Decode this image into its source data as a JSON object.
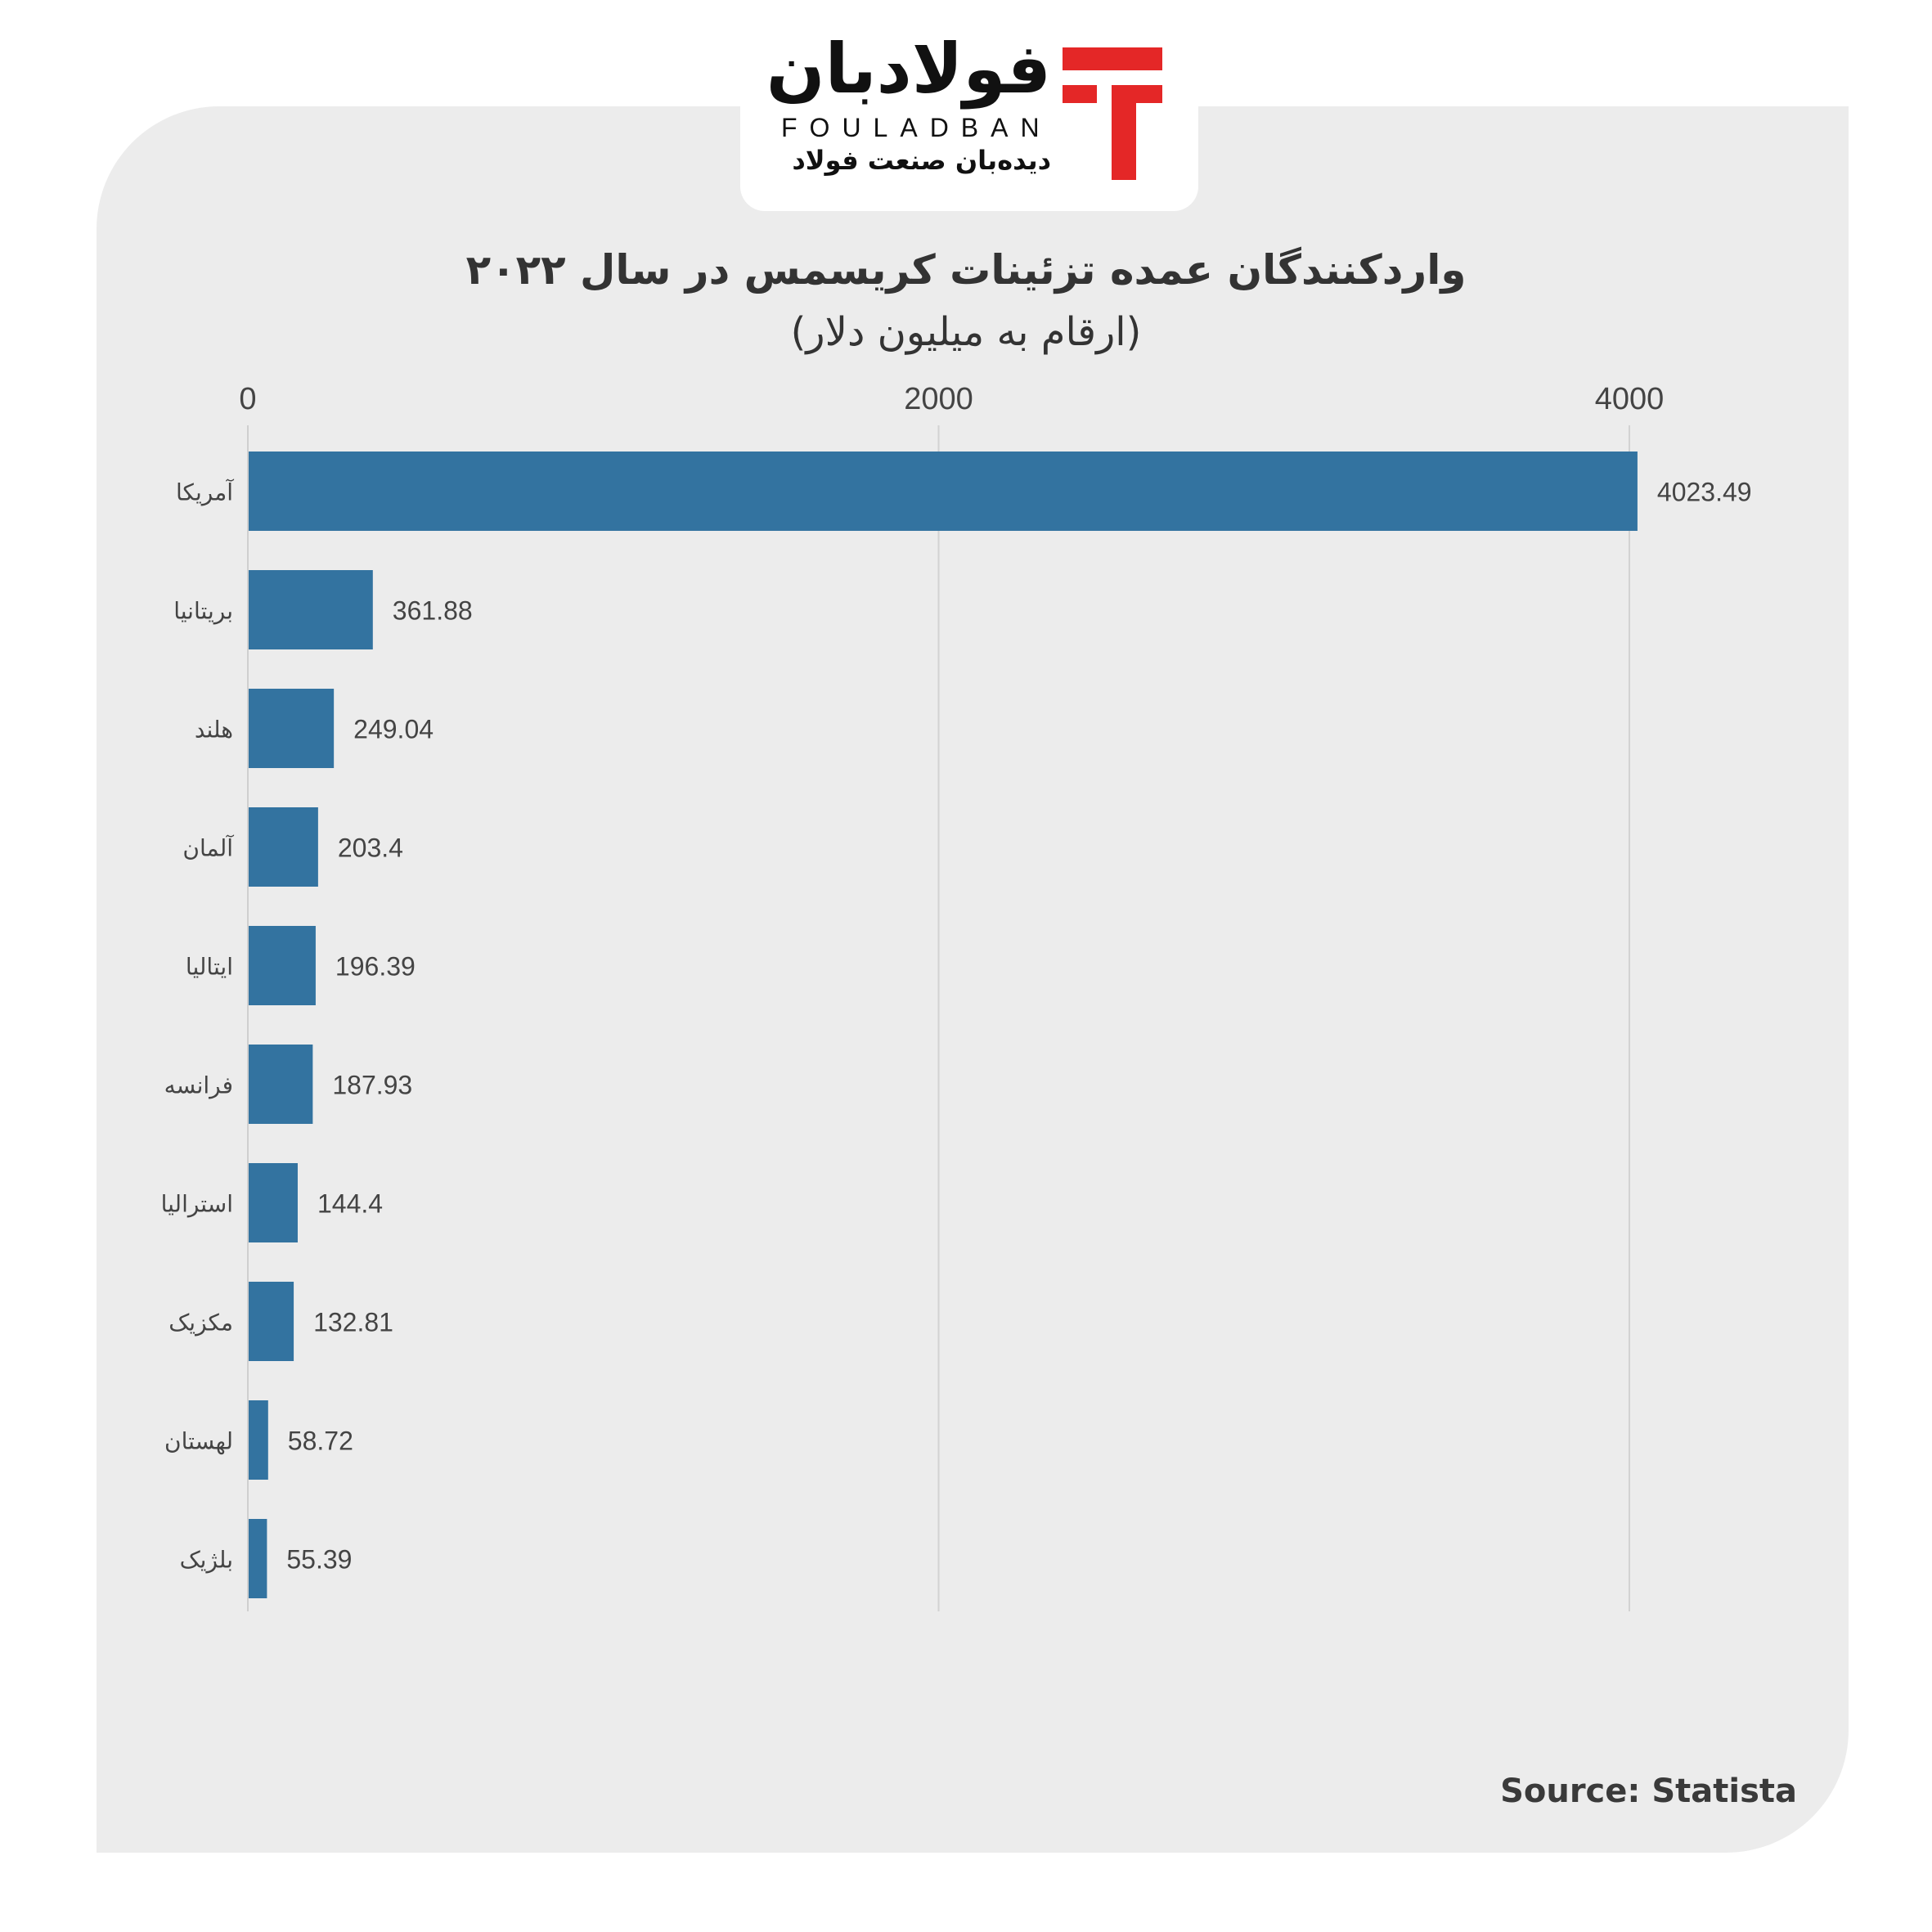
{
  "logo": {
    "name_fa": "فولادبان",
    "name_en": "FOULADBAN",
    "tagline": "دیده‌بان صنعت فولاد",
    "accent_color": "#e42727"
  },
  "source": "Source: Statista",
  "chart_data": {
    "type": "bar",
    "orientation": "horizontal",
    "title": "واردکنندگان عمده تزئینات کریسمس در سال ۲۰۲۲",
    "subtitle": "(ارقام به میلیون دلار)",
    "categories": [
      "آمریکا",
      "بریتانیا",
      "هلند",
      "آلمان",
      "ایتالیا",
      "فرانسه",
      "استرالیا",
      "مکزیک",
      "لهستان",
      "بلژیک"
    ],
    "values": [
      4023.49,
      361.88,
      249.04,
      203.4,
      196.39,
      187.93,
      144.4,
      132.81,
      58.72,
      55.39
    ],
    "value_labels": [
      "4023.49",
      "361.88",
      "249.04",
      "203.4",
      "196.39",
      "187.93",
      "144.4",
      "132.81",
      "58.72",
      "55.39"
    ],
    "x_ticks": [
      0,
      2000,
      4000
    ],
    "xlim": [
      0,
      4000
    ],
    "xaxis_position": "top",
    "grid": true,
    "bar_color": "#3373a0"
  }
}
